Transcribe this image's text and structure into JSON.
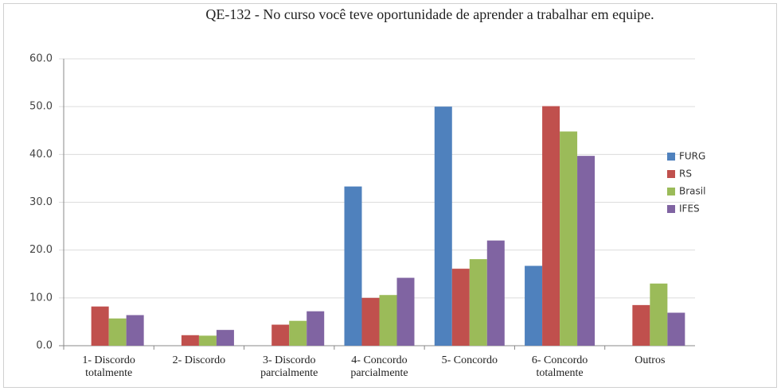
{
  "chart_data": {
    "type": "bar",
    "title": "QE-132 - No curso você teve oportunidade de aprender a trabalhar em equipe.",
    "categories": [
      "1- Discordo totalmente",
      "2- Discordo",
      "3- Discordo parcialmente",
      "4- Concordo parcialmente",
      "5- Concordo",
      "6- Concordo totalmente",
      "Outros"
    ],
    "series": [
      {
        "name": "FURG",
        "color": "#4f81bd",
        "values": [
          0,
          0,
          0,
          33.3,
          50.0,
          16.7,
          0
        ]
      },
      {
        "name": "RS",
        "color": "#c0504d",
        "values": [
          8.2,
          2.2,
          4.4,
          10.0,
          16.1,
          50.1,
          8.5
        ]
      },
      {
        "name": "Brasil",
        "color": "#9bbb59",
        "values": [
          5.7,
          2.1,
          5.2,
          10.6,
          18.1,
          44.8,
          13.0
        ]
      },
      {
        "name": "IFES",
        "color": "#8064a2",
        "values": [
          6.4,
          3.3,
          7.2,
          14.2,
          22.0,
          39.7,
          6.9
        ]
      }
    ],
    "ylim": [
      0,
      60
    ],
    "yticks": [
      {
        "value": 0,
        "label": "0.0"
      },
      {
        "value": 10,
        "label": "10.0"
      },
      {
        "value": 20,
        "label": "20.0"
      },
      {
        "value": 30,
        "label": "30.0"
      },
      {
        "value": 40,
        "label": "40.0"
      },
      {
        "value": 50,
        "label": "50.0"
      },
      {
        "value": 60,
        "label": "60.0"
      }
    ],
    "grid": true,
    "legend": "right"
  }
}
